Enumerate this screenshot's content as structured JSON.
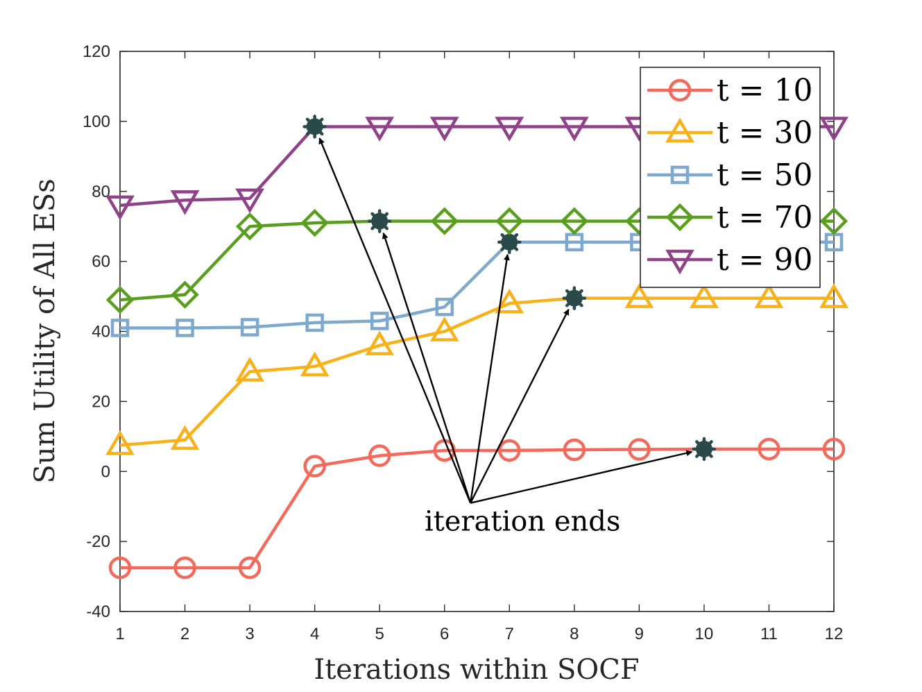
{
  "chart_data": {
    "type": "line",
    "xlabel": "Iterations within SOCF",
    "ylabel": "Sum Utility of All ESs",
    "x": [
      1,
      2,
      3,
      4,
      5,
      6,
      7,
      8,
      9,
      10,
      11,
      12
    ],
    "xticks": [
      1,
      2,
      3,
      4,
      5,
      6,
      7,
      8,
      9,
      10,
      11,
      12
    ],
    "xlim": [
      1,
      12
    ],
    "ylim": [
      -40,
      120
    ],
    "yticks": [
      -40,
      -20,
      0,
      20,
      40,
      60,
      80,
      100,
      120
    ],
    "grid": false,
    "legend_position": "top-right",
    "series": [
      {
        "name": "t = 10",
        "color": "#f4695a",
        "marker": "circle",
        "values": [
          -27.5,
          -27.5,
          -27.5,
          1.5,
          4.5,
          6,
          6,
          6.2,
          6.3,
          6.4,
          6.4,
          6.4
        ],
        "end_iteration": 10
      },
      {
        "name": "t = 30",
        "color": "#f9b11a",
        "marker": "triangle-up",
        "values": [
          7.5,
          9,
          28.5,
          30,
          36,
          40,
          48,
          49.5,
          49.5,
          49.5,
          49.5,
          49.5
        ],
        "end_iteration": 8
      },
      {
        "name": "t = 50",
        "color": "#7ea9cf",
        "marker": "square",
        "values": [
          41,
          41,
          41.2,
          42.5,
          43,
          47,
          65.5,
          65.5,
          65.5,
          65.5,
          65.5,
          65.5
        ],
        "end_iteration": 7
      },
      {
        "name": "t = 70",
        "color": "#5a9e1f",
        "marker": "diamond",
        "values": [
          49,
          50.5,
          70,
          71,
          71.5,
          71.5,
          71.5,
          71.5,
          71.5,
          71.5,
          71.5,
          71.5
        ],
        "end_iteration": 5
      },
      {
        "name": "t = 90",
        "color": "#8e4288",
        "marker": "triangle-down",
        "values": [
          76,
          77.5,
          78,
          98.5,
          98.5,
          98.5,
          98.5,
          98.5,
          98.5,
          98.5,
          98.5,
          98.5
        ],
        "end_iteration": 4
      }
    ],
    "annotation": {
      "text": "iteration ends",
      "anchor": [
        6.4,
        -9
      ]
    },
    "end_marker_color": "#2a4a4a"
  }
}
